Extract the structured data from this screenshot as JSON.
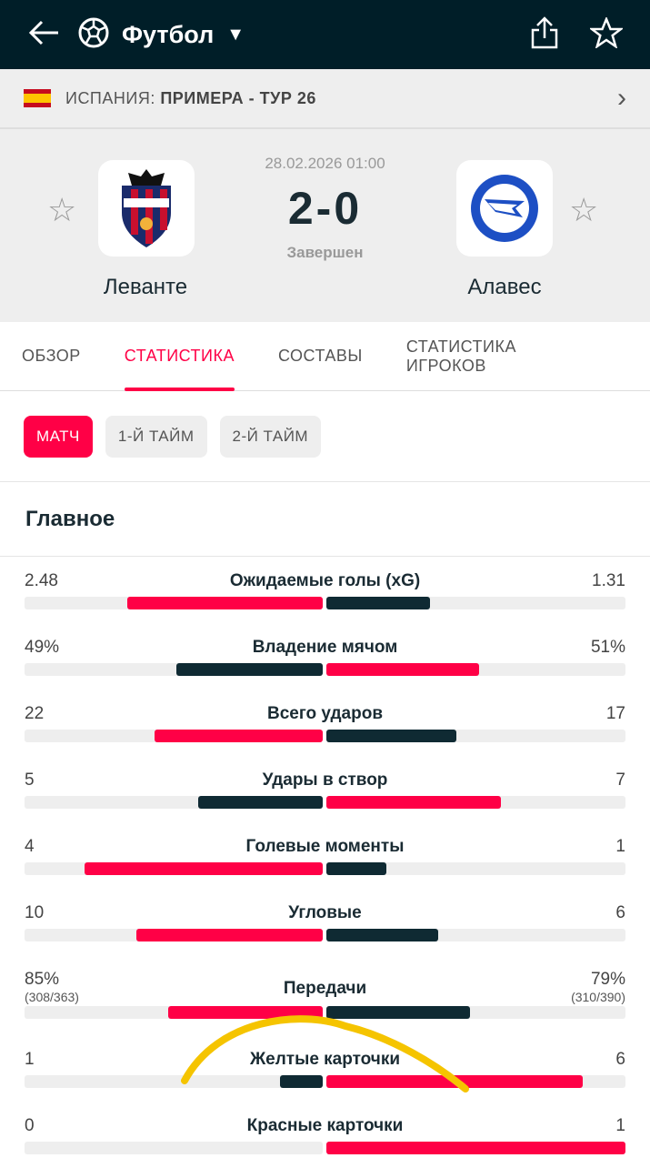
{
  "header": {
    "title": "Футбол",
    "icons": [
      "back-arrow-icon",
      "soccer-ball-icon",
      "dropdown-triangle-icon",
      "share-icon",
      "star-icon"
    ]
  },
  "league": {
    "country": "ИСПАНИЯ:",
    "name": "ПРИМЕРА - ТУР 26"
  },
  "match": {
    "date": "28.02.2026 01:00",
    "score": "2-0",
    "status": "Завершен",
    "home": "Леванте",
    "away": "Алавес"
  },
  "tabs": [
    {
      "label": "ОБЗОР"
    },
    {
      "label": "СТАТИСТИКА",
      "active": true
    },
    {
      "label": "СОСТАВЫ"
    },
    {
      "label": "СТАТИСТИКА ИГРОКОВ"
    }
  ],
  "periods": [
    {
      "label": "МАТЧ",
      "active": true
    },
    {
      "label": "1-Й ТАЙМ"
    },
    {
      "label": "2-Й ТАЙМ"
    }
  ],
  "section": "Главное",
  "colors": {
    "accent": "#ff0046",
    "dark": "#0f2a33",
    "header": "#001e28",
    "annotation": "#f5c400"
  },
  "stats": [
    {
      "label": "Ожидаемые голы (xG)",
      "home": "2.48",
      "away": "1.31",
      "h": 2.48,
      "a": 1.31
    },
    {
      "label": "Владение мячом",
      "home": "49%",
      "away": "51%",
      "h": 49,
      "a": 51
    },
    {
      "label": "Всего ударов",
      "home": "22",
      "away": "17",
      "h": 22,
      "a": 17
    },
    {
      "label": "Удары в створ",
      "home": "5",
      "away": "7",
      "h": 5,
      "a": 7
    },
    {
      "label": "Голевые моменты",
      "home": "4",
      "away": "1",
      "h": 4,
      "a": 1
    },
    {
      "label": "Угловые",
      "home": "10",
      "away": "6",
      "h": 10,
      "a": 6
    },
    {
      "label": "Передачи",
      "home": "85%",
      "away": "79%",
      "home_sub": "(308/363)",
      "away_sub": "(310/390)",
      "h": 85,
      "a": 79
    },
    {
      "label": "Желтые карточки",
      "home": "1",
      "away": "6",
      "h": 1,
      "a": 6
    },
    {
      "label": "Красные карточки",
      "home": "0",
      "away": "1",
      "h": 0,
      "a": 1
    }
  ]
}
